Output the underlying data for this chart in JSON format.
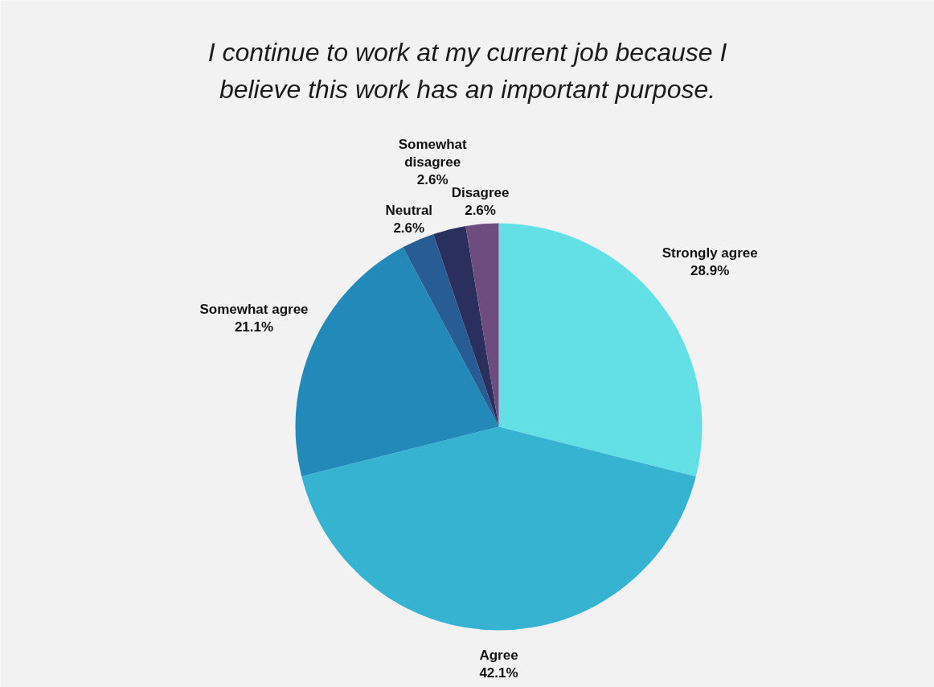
{
  "chart_data": {
    "type": "pie",
    "title": "I continue to work at my current job because I believe this work has an important purpose.",
    "categories": [
      "Strongly agree",
      "Agree",
      "Somewhat agree",
      "Neutral",
      "Somewhat disagree",
      "Disagree"
    ],
    "values": [
      28.9,
      42.1,
      21.1,
      2.6,
      2.6,
      2.6
    ],
    "value_labels": [
      "28.9%",
      "42.1%",
      "21.1%",
      "2.6%",
      "2.6%",
      "2.6%"
    ],
    "colors": [
      "#63e0e5",
      "#36b3d1",
      "#2389b8",
      "#285c94",
      "#2b2f5e",
      "#6e4c7f"
    ]
  }
}
